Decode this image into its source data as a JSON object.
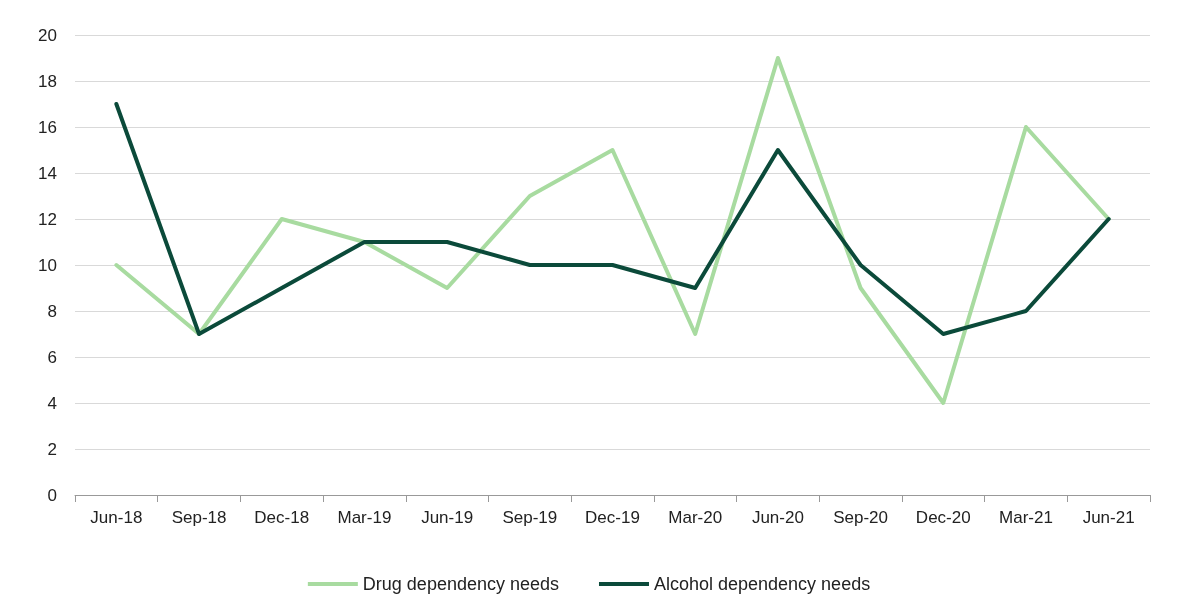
{
  "chart_data": {
    "type": "line",
    "categories": [
      "Jun-18",
      "Sep-18",
      "Dec-18",
      "Mar-19",
      "Jun-19",
      "Sep-19",
      "Dec-19",
      "Mar-20",
      "Jun-20",
      "Sep-20",
      "Dec-20",
      "Mar-21",
      "Jun-21"
    ],
    "series": [
      {
        "name": "Drug dependency needs",
        "color": "#a8dba0",
        "values": [
          10,
          7,
          12,
          11,
          9,
          13,
          15,
          7,
          19,
          9,
          4,
          16,
          12
        ]
      },
      {
        "name": "Alcohol dependency needs",
        "color": "#0b4a3a",
        "values": [
          17,
          7,
          9,
          11,
          11,
          10,
          10,
          9,
          15,
          10,
          7,
          8,
          12
        ]
      }
    ],
    "ylim": [
      0,
      20
    ],
    "yticks": [
      0,
      2,
      4,
      6,
      8,
      10,
      12,
      14,
      16,
      18,
      20
    ],
    "grid": "y",
    "legend": "bottom",
    "marker": "none",
    "line_style": "solid"
  }
}
